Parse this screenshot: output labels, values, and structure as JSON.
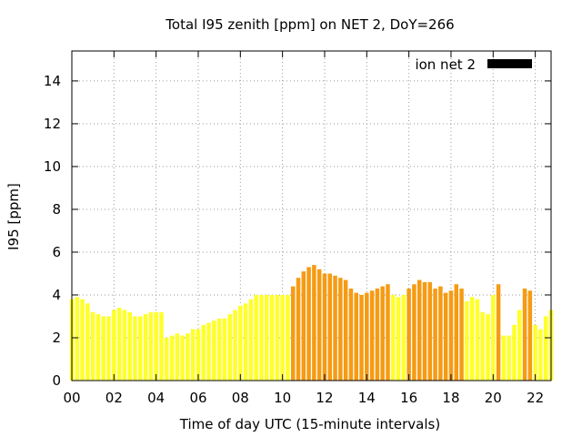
{
  "chart_data": {
    "type": "bar",
    "title": "Total I95 zenith [ppm] on NET 2, DoY=266",
    "xlabel": "Time of day UTC (15-minute intervals)",
    "ylabel": "I95 [ppm]",
    "xlim": [
      0,
      22.75
    ],
    "ylim": [
      0,
      15.4
    ],
    "x_ticks": [
      "00",
      "02",
      "04",
      "06",
      "08",
      "10",
      "12",
      "14",
      "16",
      "18",
      "20",
      "22"
    ],
    "y_ticks": [
      "0",
      "2",
      "4",
      "6",
      "8",
      "10",
      "12",
      "14"
    ],
    "grid": true,
    "legend": {
      "label": "ion net 2",
      "color": "#000000",
      "placement": "top-right"
    },
    "colors": {
      "normal": "#ffff2a",
      "elevated": "#f59b14"
    },
    "interval_hours": 0.25,
    "series": [
      {
        "values": [
          3.8,
          3.9,
          3.8,
          3.6,
          3.2,
          3.1,
          3.0,
          3.0,
          3.3,
          3.4,
          3.3,
          3.2,
          3.0,
          3.0,
          3.1,
          3.2,
          3.2,
          3.2,
          2.0,
          2.1,
          2.2,
          2.1,
          2.2,
          2.4,
          2.4,
          2.6,
          2.7,
          2.8,
          2.9,
          2.9,
          3.1,
          3.3,
          3.5,
          3.6,
          3.8,
          4.0,
          4.0,
          4.0,
          4.0,
          4.0,
          4.0,
          4.0,
          4.4,
          4.8,
          5.1,
          5.3,
          5.4,
          5.2,
          5.0,
          5.0,
          4.9,
          4.8,
          4.7,
          4.3,
          4.1,
          4.0,
          4.1,
          4.2,
          4.3,
          4.4,
          4.5,
          4.0,
          3.9,
          4.0,
          4.3,
          4.5,
          4.7,
          4.6,
          4.6,
          4.3,
          4.4,
          4.1,
          4.2,
          4.5,
          4.3,
          3.7,
          3.9,
          3.8,
          3.2,
          3.1,
          4.0,
          4.5,
          2.1,
          2.1,
          2.6,
          3.3,
          4.3,
          4.2,
          2.6,
          2.4,
          3.0,
          3.3
        ],
        "flags": [
          0,
          0,
          0,
          0,
          0,
          0,
          0,
          0,
          0,
          0,
          0,
          0,
          0,
          0,
          0,
          0,
          0,
          0,
          0,
          0,
          0,
          0,
          0,
          0,
          0,
          0,
          0,
          0,
          0,
          0,
          0,
          0,
          0,
          0,
          0,
          0,
          0,
          0,
          0,
          0,
          0,
          0,
          1,
          1,
          1,
          1,
          1,
          1,
          1,
          1,
          1,
          1,
          1,
          1,
          1,
          1,
          1,
          1,
          1,
          1,
          1,
          0,
          0,
          0,
          1,
          1,
          1,
          1,
          1,
          1,
          1,
          1,
          1,
          1,
          1,
          0,
          0,
          0,
          0,
          0,
          0,
          1,
          0,
          0,
          0,
          0,
          1,
          1,
          0,
          0,
          0,
          0
        ]
      }
    ]
  }
}
